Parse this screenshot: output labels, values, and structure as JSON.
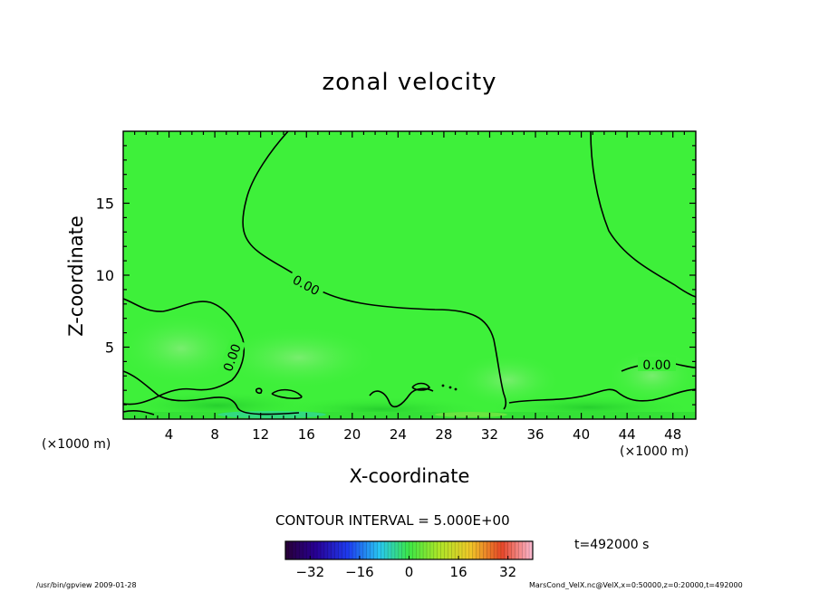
{
  "chart_data": {
    "type": "heatmap",
    "title": "zonal velocity",
    "xlabel": "X-coordinate",
    "ylabel": "Z-coordinate",
    "x_unit_label": "(×1000 m)",
    "xlim": [
      0,
      50
    ],
    "ylim": [
      0,
      20
    ],
    "x_ticks": [
      4,
      8,
      12,
      16,
      20,
      24,
      28,
      32,
      36,
      40,
      44,
      48
    ],
    "y_ticks": [
      5,
      10,
      15
    ],
    "contour_interval_label": "CONTOUR INTERVAL = 5.000E+00",
    "contour_labels": [
      "0.00",
      "0.00",
      "0.00"
    ],
    "colorbar": {
      "ticks": [
        -32,
        -16,
        0,
        16,
        32
      ],
      "range": [
        -40,
        40
      ]
    },
    "time_label": "t=492000  s",
    "dominant_value": 0,
    "colors": {
      "field": "#3ef03a",
      "field_light": "#6ff06a",
      "field_dark": "#28d828",
      "contour": "#000000"
    }
  },
  "footer": {
    "left": "/usr/bin/gpview   2009-01-28",
    "right": "MarsCond_VelX.nc@VelX,x=0:50000,z=0:20000,t=492000"
  }
}
